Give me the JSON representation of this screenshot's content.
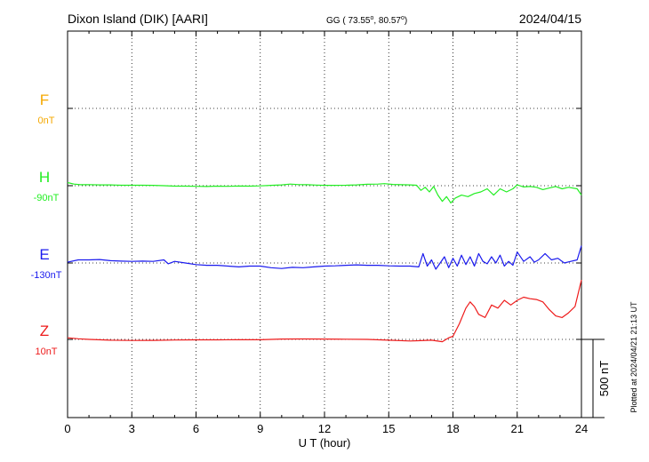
{
  "header": {
    "station": "Dixon Island (DIK)  [AARI]",
    "coords": "GG ( 73.55",
    "coords_tail": ",  80.57",
    "coords_end": ")",
    "date": "2024/04/15"
  },
  "chart_data": {
    "type": "line",
    "title": "Dixon Island (DIK)  [AARI]",
    "xlabel": "U T (hour)",
    "xlim": [
      0,
      24
    ],
    "xticks": [
      "0",
      "3",
      "6",
      "9",
      "12",
      "15",
      "18",
      "21",
      "24"
    ],
    "scale_label": "500 nT",
    "scale_nT": 500,
    "plotted_note": "Plotted at 2024/04/21 21:13 UT",
    "grid": "dotted",
    "series": [
      {
        "name": "F",
        "baseline_label": "0nT",
        "color": "#f5a800",
        "points": []
      },
      {
        "name": "H",
        "baseline_label": "-90nT",
        "color": "#22ee22",
        "points": [
          [
            0,
            20
          ],
          [
            0.3,
            10
          ],
          [
            0.6,
            6
          ],
          [
            1,
            7
          ],
          [
            1.5,
            5
          ],
          [
            2,
            5
          ],
          [
            2.5,
            3
          ],
          [
            3,
            3
          ],
          [
            3.5,
            3
          ],
          [
            4,
            2
          ],
          [
            4.5,
            0
          ],
          [
            5,
            -3
          ],
          [
            5.5,
            -3
          ],
          [
            6,
            -4
          ],
          [
            6.5,
            -5
          ],
          [
            7,
            -3
          ],
          [
            7.5,
            -4
          ],
          [
            8,
            -2
          ],
          [
            8.5,
            -3
          ],
          [
            9,
            -1
          ],
          [
            9.5,
            2
          ],
          [
            10,
            5
          ],
          [
            10.4,
            10
          ],
          [
            10.8,
            7
          ],
          [
            11.2,
            6
          ],
          [
            11.6,
            4
          ],
          [
            12,
            2
          ],
          [
            12.5,
            2
          ],
          [
            13,
            3
          ],
          [
            13.5,
            5
          ],
          [
            14,
            9
          ],
          [
            14.5,
            10
          ],
          [
            14.8,
            13
          ],
          [
            15.2,
            8
          ],
          [
            15.6,
            6
          ],
          [
            16,
            5
          ],
          [
            16.3,
            3
          ],
          [
            16.5,
            -30
          ],
          [
            16.7,
            -10
          ],
          [
            16.9,
            -40
          ],
          [
            17.1,
            -5
          ],
          [
            17.3,
            -60
          ],
          [
            17.5,
            -100
          ],
          [
            17.7,
            -70
          ],
          [
            17.9,
            -110
          ],
          [
            18.1,
            -80
          ],
          [
            18.4,
            -60
          ],
          [
            18.7,
            -70
          ],
          [
            19,
            -50
          ],
          [
            19.3,
            -40
          ],
          [
            19.6,
            -20
          ],
          [
            19.9,
            -60
          ],
          [
            20.2,
            -20
          ],
          [
            20.5,
            -40
          ],
          [
            20.8,
            -20
          ],
          [
            21,
            5
          ],
          [
            21.3,
            -8
          ],
          [
            21.6,
            -5
          ],
          [
            21.9,
            -10
          ],
          [
            22.2,
            -25
          ],
          [
            22.5,
            -15
          ],
          [
            22.8,
            -5
          ],
          [
            23.1,
            -20
          ],
          [
            23.4,
            -10
          ],
          [
            23.8,
            -20
          ],
          [
            24,
            -60
          ]
        ]
      },
      {
        "name": "E",
        "baseline_label": "-130nT",
        "color": "#1a1aee",
        "points": [
          [
            0,
            5
          ],
          [
            0.5,
            20
          ],
          [
            1,
            20
          ],
          [
            1.5,
            22
          ],
          [
            2,
            15
          ],
          [
            2.5,
            12
          ],
          [
            3,
            10
          ],
          [
            3.5,
            12
          ],
          [
            4,
            10
          ],
          [
            4.5,
            20
          ],
          [
            4.7,
            -5
          ],
          [
            5,
            10
          ],
          [
            5.5,
            0
          ],
          [
            6,
            -10
          ],
          [
            6.5,
            -15
          ],
          [
            7,
            -15
          ],
          [
            7.5,
            -20
          ],
          [
            8,
            -25
          ],
          [
            8.5,
            -20
          ],
          [
            9,
            -20
          ],
          [
            9.5,
            -30
          ],
          [
            10,
            -35
          ],
          [
            10.5,
            -28
          ],
          [
            11,
            -30
          ],
          [
            11.5,
            -25
          ],
          [
            12,
            -20
          ],
          [
            12.5,
            -18
          ],
          [
            13,
            -15
          ],
          [
            13.5,
            -12
          ],
          [
            14,
            -15
          ],
          [
            14.5,
            -15
          ],
          [
            15,
            -18
          ],
          [
            15.5,
            -20
          ],
          [
            16,
            -20
          ],
          [
            16.4,
            -25
          ],
          [
            16.6,
            60
          ],
          [
            16.8,
            -20
          ],
          [
            17,
            20
          ],
          [
            17.2,
            -40
          ],
          [
            17.4,
            0
          ],
          [
            17.6,
            40
          ],
          [
            17.8,
            -30
          ],
          [
            18,
            30
          ],
          [
            18.2,
            -20
          ],
          [
            18.4,
            50
          ],
          [
            18.6,
            -10
          ],
          [
            18.8,
            40
          ],
          [
            19,
            -20
          ],
          [
            19.2,
            60
          ],
          [
            19.4,
            10
          ],
          [
            19.6,
            -5
          ],
          [
            19.8,
            40
          ],
          [
            20,
            0
          ],
          [
            20.2,
            50
          ],
          [
            20.4,
            -20
          ],
          [
            20.6,
            10
          ],
          [
            20.8,
            -15
          ],
          [
            21,
            70
          ],
          [
            21.3,
            10
          ],
          [
            21.6,
            40
          ],
          [
            21.8,
            5
          ],
          [
            22,
            20
          ],
          [
            22.3,
            60
          ],
          [
            22.6,
            20
          ],
          [
            22.9,
            30
          ],
          [
            23.2,
            0
          ],
          [
            23.5,
            10
          ],
          [
            23.8,
            20
          ],
          [
            24,
            110
          ]
        ]
      },
      {
        "name": "Z",
        "baseline_label": "10nT",
        "color": "#ee1a1a",
        "points": [
          [
            0,
            10
          ],
          [
            0.5,
            4
          ],
          [
            1,
            0
          ],
          [
            2,
            -5
          ],
          [
            3,
            -7
          ],
          [
            4,
            -6
          ],
          [
            5,
            -4
          ],
          [
            6,
            -3
          ],
          [
            7,
            -3
          ],
          [
            8,
            -2
          ],
          [
            9,
            -2
          ],
          [
            10,
            2
          ],
          [
            11,
            3
          ],
          [
            12,
            2
          ],
          [
            13,
            1
          ],
          [
            14,
            0
          ],
          [
            15,
            -5
          ],
          [
            16,
            -10
          ],
          [
            16.5,
            -8
          ],
          [
            17,
            -5
          ],
          [
            17.5,
            -15
          ],
          [
            17.8,
            10
          ],
          [
            18,
            20
          ],
          [
            18.3,
            100
          ],
          [
            18.6,
            200
          ],
          [
            18.8,
            240
          ],
          [
            19,
            210
          ],
          [
            19.2,
            160
          ],
          [
            19.5,
            140
          ],
          [
            19.8,
            220
          ],
          [
            20.1,
            200
          ],
          [
            20.4,
            250
          ],
          [
            20.7,
            220
          ],
          [
            21,
            250
          ],
          [
            21.3,
            270
          ],
          [
            21.6,
            260
          ],
          [
            21.9,
            255
          ],
          [
            22.2,
            240
          ],
          [
            22.5,
            190
          ],
          [
            22.8,
            150
          ],
          [
            23.1,
            140
          ],
          [
            23.4,
            170
          ],
          [
            23.7,
            210
          ],
          [
            24,
            380
          ]
        ]
      }
    ]
  }
}
